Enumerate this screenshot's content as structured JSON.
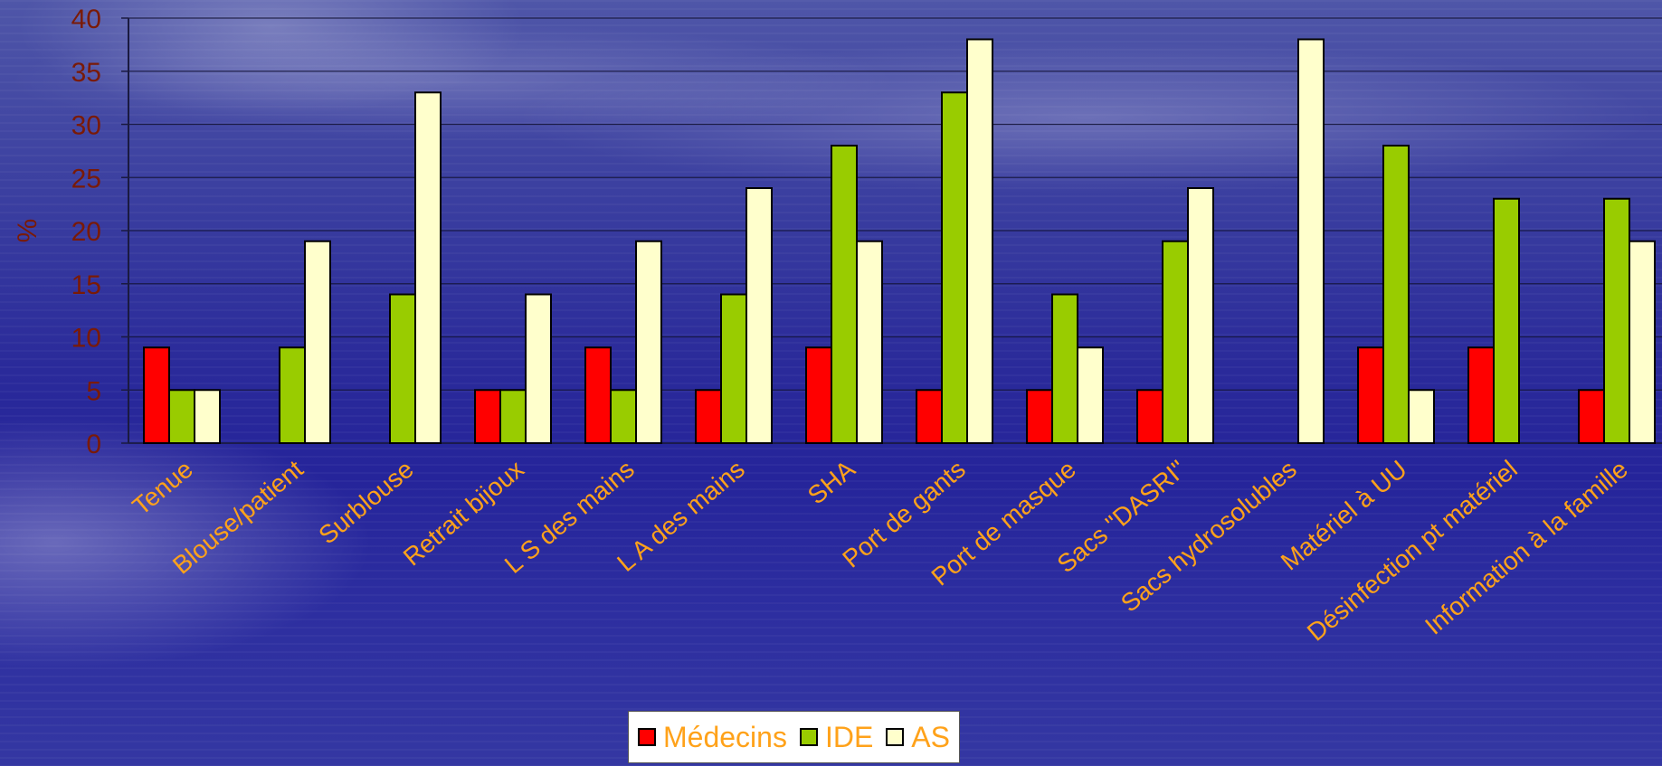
{
  "chart_data": {
    "type": "bar",
    "ylabel": "%",
    "xlabel": "",
    "ylim": [
      0,
      40
    ],
    "yticks": [
      0,
      5,
      10,
      15,
      20,
      25,
      30,
      35,
      40
    ],
    "grid": true,
    "legend_position": "bottom-center",
    "categories": [
      "Tenue",
      "Blouse/patient",
      "Surblouse",
      "Retrait bijoux",
      "L S  des mains",
      "L A des mains",
      "SHA",
      "Port de gants",
      "Port de masque",
      "Sacs \"DASRI\"",
      "Sacs hydrosolubles",
      "Matériel à UU",
      "Désinfection pt matériel",
      "Information à la famille"
    ],
    "series": [
      {
        "name": "Médecins",
        "color": "#ff0000",
        "values": [
          9,
          0,
          0,
          5,
          9,
          5,
          9,
          5,
          5,
          5,
          0,
          9,
          9,
          5
        ]
      },
      {
        "name": "IDE",
        "color": "#99cc00",
        "values": [
          5,
          9,
          14,
          5,
          5,
          14,
          28,
          33,
          14,
          19,
          0,
          28,
          23,
          23
        ]
      },
      {
        "name": "AS",
        "color": "#ffffcc",
        "values": [
          5,
          19,
          33,
          14,
          19,
          24,
          19,
          38,
          9,
          24,
          38,
          5,
          0,
          19
        ]
      }
    ]
  }
}
